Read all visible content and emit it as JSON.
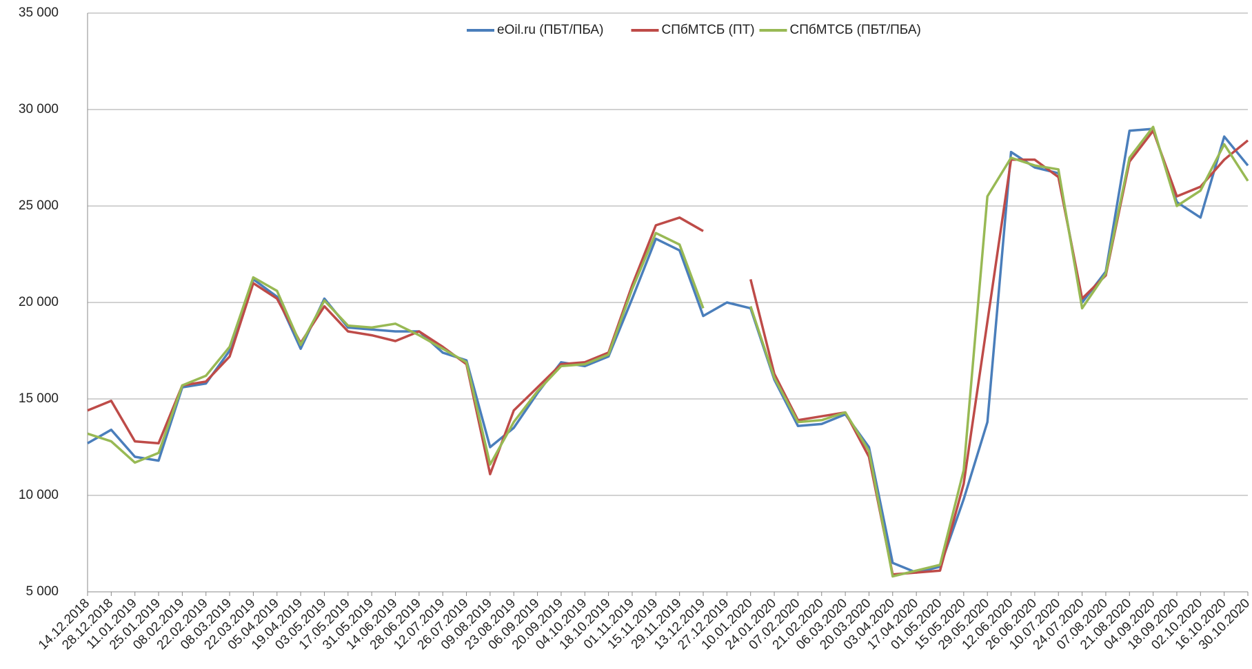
{
  "chart_data": {
    "type": "line",
    "categories": [
      "14.12.2018",
      "28.12.2018",
      "11.01.2019",
      "25.01.2019",
      "08.02.2019",
      "22.02.2019",
      "08.03.2019",
      "22.03.2019",
      "05.04.2019",
      "19.04.2019",
      "03.05.2019",
      "17.05.2019",
      "31.05.2019",
      "14.06.2019",
      "28.06.2019",
      "12.07.2019",
      "26.07.2019",
      "09.08.2019",
      "23.08.2019",
      "06.09.2019",
      "20.09.2019",
      "04.10.2019",
      "18.10.2019",
      "01.11.2019",
      "15.11.2019",
      "29.11.2019",
      "13.12.2019",
      "27.12.2019",
      "10.01.2020",
      "24.01.2020",
      "07.02.2020",
      "21.02.2020",
      "06.03.2020",
      "20.03.2020",
      "03.04.2020",
      "17.04.2020",
      "01.05.2020",
      "15.05.2020",
      "29.05.2020",
      "12.06.2020",
      "26.06.2020",
      "10.07.2020",
      "24.07.2020",
      "07.08.2020",
      "21.08.2020",
      "04.09.2020",
      "18.09.2020",
      "02.10.2020",
      "16.10.2020",
      "30.10.2020"
    ],
    "series": [
      {
        "name": "eOil.ru (ПБТ/ПБА)",
        "color": "#4a7ebb",
        "values": [
          12700,
          13400,
          12000,
          11800,
          15600,
          15800,
          17500,
          21200,
          20300,
          17600,
          20200,
          18700,
          18600,
          18500,
          18500,
          17400,
          17000,
          12500,
          13500,
          15300,
          16900,
          16700,
          17200,
          20200,
          23300,
          22700,
          19300,
          20000,
          19700,
          16000,
          13600,
          13700,
          14200,
          12500,
          6500,
          6000,
          6300,
          9800,
          13800,
          27800,
          27000,
          26700,
          20000,
          21600,
          28900,
          29000,
          25200,
          24400,
          28600,
          27100
        ]
      },
      {
        "name": "СПбМТСБ (ПТ)",
        "color": "#be4b48",
        "values": [
          14400,
          14900,
          12800,
          12700,
          15700,
          15900,
          17200,
          21000,
          20200,
          17900,
          19800,
          18500,
          18300,
          18000,
          18500,
          17700,
          16800,
          11100,
          14400,
          15600,
          16800,
          16900,
          17400,
          20900,
          24000,
          24400,
          23700,
          null,
          21200,
          16300,
          13900,
          14100,
          14300,
          12000,
          5900,
          6000,
          6100,
          10600,
          19000,
          27400,
          27400,
          26500,
          20200,
          21400,
          27300,
          28900,
          25500,
          26000,
          27400,
          28400
        ]
      },
      {
        "name": "СПбМТСБ (ПБТ/ПБА)",
        "color": "#98b954",
        "values": [
          13200,
          12800,
          11700,
          12200,
          15700,
          16200,
          17700,
          21300,
          20600,
          17800,
          20100,
          18800,
          18700,
          18900,
          18300,
          17600,
          16900,
          11600,
          13800,
          15400,
          16700,
          16800,
          17300,
          20700,
          23600,
          23000,
          19700,
          null,
          19800,
          16100,
          13800,
          13900,
          14300,
          12300,
          5800,
          6100,
          6400,
          11300,
          25500,
          27500,
          27100,
          26900,
          19700,
          21500,
          27500,
          29100,
          25000,
          25800,
          28200,
          26300
        ]
      }
    ],
    "ylim": [
      5000,
      35000
    ],
    "yticks": [
      {
        "value": 5000,
        "label": "5 000"
      },
      {
        "value": 10000,
        "label": "10 000"
      },
      {
        "value": 15000,
        "label": "15 000"
      },
      {
        "value": 20000,
        "label": "20 000"
      },
      {
        "value": 25000,
        "label": "25 000"
      },
      {
        "value": 30000,
        "label": "30 000"
      },
      {
        "value": 35000,
        "label": "35 000"
      }
    ],
    "grid": true,
    "legend": "top"
  }
}
